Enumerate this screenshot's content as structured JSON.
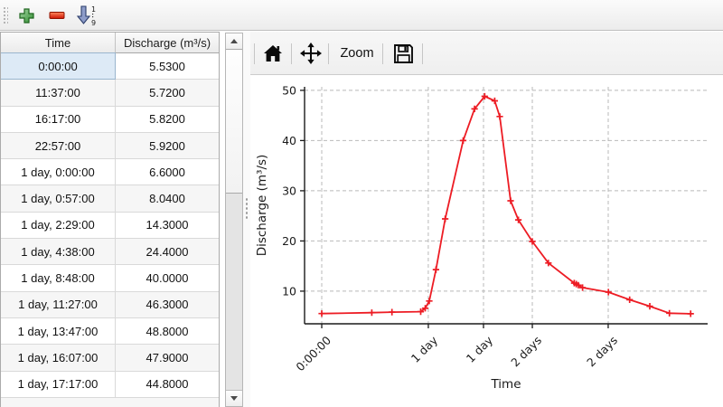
{
  "toolbar": {
    "buttons": [
      {
        "id": "add",
        "icon": "plus-icon"
      },
      {
        "id": "remove",
        "icon": "minus-icon"
      },
      {
        "id": "sort",
        "icon": "sort-numeric-ascending-icon",
        "digits_top": "1",
        "digits_bottom": "9"
      }
    ]
  },
  "table": {
    "columns": [
      "Time",
      "Discharge (m³/s)"
    ],
    "rows": [
      [
        "0:00:00",
        "5.5300"
      ],
      [
        "11:37:00",
        "5.7200"
      ],
      [
        "16:17:00",
        "5.8200"
      ],
      [
        "22:57:00",
        "5.9200"
      ],
      [
        "1 day, 0:00:00",
        "6.6000"
      ],
      [
        "1 day, 0:57:00",
        "8.0400"
      ],
      [
        "1 day, 2:29:00",
        "14.3000"
      ],
      [
        "1 day, 4:38:00",
        "24.4000"
      ],
      [
        "1 day, 8:48:00",
        "40.0000"
      ],
      [
        "1 day, 11:27:00",
        "46.3000"
      ],
      [
        "1 day, 13:47:00",
        "48.8000"
      ],
      [
        "1 day, 16:07:00",
        "47.9000"
      ],
      [
        "1 day, 17:17:00",
        "44.8000"
      ]
    ],
    "selected_row": 0,
    "selected_col": 0
  },
  "chart_toolbar": {
    "buttons": [
      {
        "id": "home",
        "icon": "home-icon"
      },
      {
        "id": "pan",
        "icon": "pan-arrows-icon"
      },
      {
        "id": "zoom",
        "label": "Zoom"
      },
      {
        "id": "save",
        "icon": "save-icon"
      }
    ],
    "zoom_label": "Zoom"
  },
  "chart_data": {
    "type": "line",
    "title": "",
    "xlabel": "Time",
    "ylabel": "Discharge (m³/s)",
    "line_color": "#ed1c24",
    "marker": "+",
    "grid": true,
    "grid_color": "#b9b9b9",
    "xlim": [
      -0.166,
      3.729
    ],
    "ylim": [
      3.5,
      50.7
    ],
    "x_units": "days",
    "xticks": {
      "positions": [
        0,
        1.03,
        1.563,
        2.035,
        2.768
      ],
      "labels": [
        "0:00:00",
        "1 day",
        "1 day",
        "2 days",
        "2 days"
      ]
    },
    "yticks": [
      10,
      20,
      30,
      40,
      50
    ],
    "series": [
      {
        "name": "discharge",
        "x": [
          0,
          0.48403,
          0.67847,
          0.95625,
          1.0,
          1.03958,
          1.10347,
          1.19306,
          1.36667,
          1.47708,
          1.57431,
          1.67153,
          1.72014,
          1.825,
          1.9,
          2.035,
          2.19,
          2.44,
          2.46,
          2.48,
          2.52,
          2.77,
          2.975,
          3.17,
          3.36,
          3.565
        ],
        "y": [
          5.53,
          5.72,
          5.82,
          5.92,
          6.6,
          8.04,
          14.3,
          24.4,
          40.0,
          46.3,
          48.8,
          47.9,
          44.8,
          28.0,
          24.2,
          19.9,
          15.6,
          11.6,
          11.4,
          11.2,
          10.7,
          9.8,
          8.3,
          7.0,
          5.6,
          5.5
        ]
      }
    ]
  }
}
